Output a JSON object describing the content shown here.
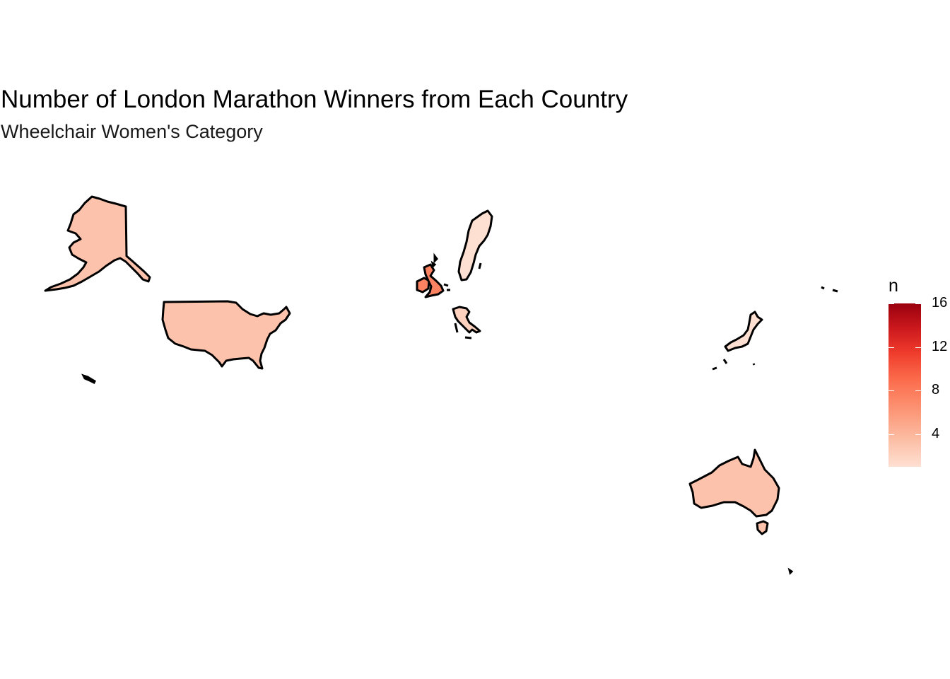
{
  "chart_data": {
    "type": "choropleth",
    "title": "Number of London Marathon Winners from Each Country",
    "subtitle": "Wheelchair Women's Category",
    "legend": {
      "title": "n",
      "ticks": [
        "4",
        "8",
        "12",
        "16"
      ],
      "range": [
        1,
        16
      ],
      "placement": "right"
    },
    "palette": [
      "#fee0d2",
      "#fcbba1",
      "#fc9272",
      "#fb6a4a",
      "#ef3b2c",
      "#cb181d",
      "#99000d"
    ],
    "regions": [
      {
        "name": "USA",
        "n": 3
      },
      {
        "name": "UK",
        "n": 7
      },
      {
        "name": "Sweden",
        "n": 1
      },
      {
        "name": "Italy",
        "n": 2
      },
      {
        "name": "Japan",
        "n": 1
      },
      {
        "name": "Australia",
        "n": 3
      }
    ]
  }
}
